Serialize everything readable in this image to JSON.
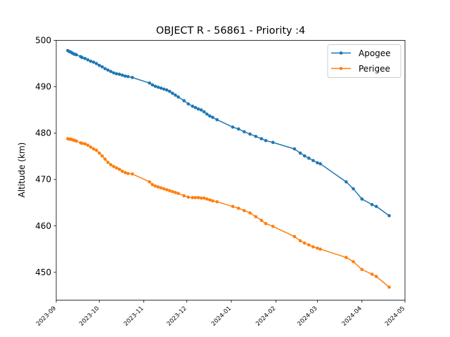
{
  "chart_data": {
    "type": "line",
    "title": "OBJECT R - 56861 - Priority :4",
    "xlabel": "",
    "ylabel": "Altitude (km)",
    "x_type": "date",
    "xlim": [
      "2023-09-01",
      "2024-05-01"
    ],
    "ylim": [
      444,
      500
    ],
    "x_ticks": [
      "2023-09",
      "2023-10",
      "2023-11",
      "2023-12",
      "2024-01",
      "2024-02",
      "2024-03",
      "2024-04",
      "2024-05"
    ],
    "y_ticks": [
      450,
      460,
      470,
      480,
      490,
      500
    ],
    "grid": false,
    "legend_position": "upper right",
    "series": [
      {
        "name": "Apogee",
        "color": "#1f77b4",
        "marker": "circle",
        "points": [
          [
            "2023-09-09",
            497.8
          ],
          [
            "2023-09-10",
            497.6
          ],
          [
            "2023-09-11",
            497.5
          ],
          [
            "2023-09-12",
            497.3
          ],
          [
            "2023-09-13",
            497.1
          ],
          [
            "2023-09-14",
            497.0
          ],
          [
            "2023-09-15",
            496.9
          ],
          [
            "2023-09-18",
            496.5
          ],
          [
            "2023-09-19",
            496.3
          ],
          [
            "2023-09-21",
            496.1
          ],
          [
            "2023-09-23",
            495.8
          ],
          [
            "2023-09-25",
            495.5
          ],
          [
            "2023-09-27",
            495.3
          ],
          [
            "2023-09-29",
            495.0
          ],
          [
            "2023-10-01",
            494.6
          ],
          [
            "2023-10-03",
            494.3
          ],
          [
            "2023-10-05",
            493.9
          ],
          [
            "2023-10-07",
            493.6
          ],
          [
            "2023-10-09",
            493.3
          ],
          [
            "2023-10-11",
            493.0
          ],
          [
            "2023-10-13",
            492.8
          ],
          [
            "2023-10-15",
            492.7
          ],
          [
            "2023-10-17",
            492.5
          ],
          [
            "2023-10-19",
            492.3
          ],
          [
            "2023-10-21",
            492.2
          ],
          [
            "2023-10-24",
            492.0
          ],
          [
            "2023-11-05",
            490.8
          ],
          [
            "2023-11-07",
            490.4
          ],
          [
            "2023-11-09",
            490.1
          ],
          [
            "2023-11-11",
            489.9
          ],
          [
            "2023-11-13",
            489.7
          ],
          [
            "2023-11-15",
            489.5
          ],
          [
            "2023-11-17",
            489.3
          ],
          [
            "2023-11-19",
            489.0
          ],
          [
            "2023-11-21",
            488.6
          ],
          [
            "2023-11-23",
            488.2
          ],
          [
            "2023-11-25",
            487.8
          ],
          [
            "2023-11-29",
            487.0
          ],
          [
            "2023-12-02",
            486.3
          ],
          [
            "2023-12-05",
            485.8
          ],
          [
            "2023-12-07",
            485.5
          ],
          [
            "2023-12-09",
            485.2
          ],
          [
            "2023-12-11",
            485.0
          ],
          [
            "2023-12-13",
            484.6
          ],
          [
            "2023-12-15",
            484.1
          ],
          [
            "2023-12-17",
            483.7
          ],
          [
            "2023-12-19",
            483.4
          ],
          [
            "2023-12-22",
            482.9
          ],
          [
            "2024-01-02",
            481.3
          ],
          [
            "2024-01-06",
            480.9
          ],
          [
            "2024-01-10",
            480.3
          ],
          [
            "2024-01-14",
            479.8
          ],
          [
            "2024-01-18",
            479.3
          ],
          [
            "2024-01-22",
            478.8
          ],
          [
            "2024-01-25",
            478.4
          ],
          [
            "2024-01-30",
            478.0
          ],
          [
            "2024-02-14",
            476.6
          ],
          [
            "2024-02-18",
            475.7
          ],
          [
            "2024-02-21",
            475.1
          ],
          [
            "2024-02-24",
            474.6
          ],
          [
            "2024-02-27",
            474.1
          ],
          [
            "2024-03-01",
            473.6
          ],
          [
            "2024-03-03",
            473.4
          ],
          [
            "2024-03-21",
            469.5
          ],
          [
            "2024-03-26",
            468.0
          ],
          [
            "2024-04-01",
            465.8
          ],
          [
            "2024-04-08",
            464.6
          ],
          [
            "2024-04-11",
            464.2
          ],
          [
            "2024-04-20",
            462.2
          ]
        ]
      },
      {
        "name": "Perigee",
        "color": "#ff7f0e",
        "marker": "circle",
        "points": [
          [
            "2023-09-09",
            478.8
          ],
          [
            "2023-09-10",
            478.7
          ],
          [
            "2023-09-11",
            478.7
          ],
          [
            "2023-09-12",
            478.6
          ],
          [
            "2023-09-13",
            478.5
          ],
          [
            "2023-09-14",
            478.4
          ],
          [
            "2023-09-15",
            478.3
          ],
          [
            "2023-09-18",
            477.9
          ],
          [
            "2023-09-19",
            477.8
          ],
          [
            "2023-09-21",
            477.7
          ],
          [
            "2023-09-23",
            477.4
          ],
          [
            "2023-09-25",
            477.0
          ],
          [
            "2023-09-27",
            476.6
          ],
          [
            "2023-09-29",
            476.3
          ],
          [
            "2023-10-01",
            475.7
          ],
          [
            "2023-10-03",
            475.1
          ],
          [
            "2023-10-05",
            474.4
          ],
          [
            "2023-10-07",
            473.7
          ],
          [
            "2023-10-09",
            473.2
          ],
          [
            "2023-10-11",
            472.8
          ],
          [
            "2023-10-13",
            472.5
          ],
          [
            "2023-10-15",
            472.2
          ],
          [
            "2023-10-17",
            471.8
          ],
          [
            "2023-10-19",
            471.5
          ],
          [
            "2023-10-21",
            471.3
          ],
          [
            "2023-10-24",
            471.2
          ],
          [
            "2023-11-05",
            469.5
          ],
          [
            "2023-11-07",
            468.9
          ],
          [
            "2023-11-09",
            468.6
          ],
          [
            "2023-11-11",
            468.4
          ],
          [
            "2023-11-13",
            468.2
          ],
          [
            "2023-11-15",
            468.0
          ],
          [
            "2023-11-17",
            467.8
          ],
          [
            "2023-11-19",
            467.6
          ],
          [
            "2023-11-21",
            467.4
          ],
          [
            "2023-11-23",
            467.2
          ],
          [
            "2023-11-25",
            467.0
          ],
          [
            "2023-11-29",
            466.5
          ],
          [
            "2023-12-02",
            466.2
          ],
          [
            "2023-12-05",
            466.1
          ],
          [
            "2023-12-07",
            466.1
          ],
          [
            "2023-12-09",
            466.1
          ],
          [
            "2023-12-11",
            466.0
          ],
          [
            "2023-12-13",
            466.0
          ],
          [
            "2023-12-15",
            465.8
          ],
          [
            "2023-12-17",
            465.6
          ],
          [
            "2023-12-19",
            465.4
          ],
          [
            "2023-12-22",
            465.2
          ],
          [
            "2024-01-02",
            464.2
          ],
          [
            "2024-01-06",
            463.8
          ],
          [
            "2024-01-10",
            463.3
          ],
          [
            "2024-01-14",
            462.8
          ],
          [
            "2024-01-18",
            462.0
          ],
          [
            "2024-01-22",
            461.2
          ],
          [
            "2024-01-25",
            460.5
          ],
          [
            "2024-01-30",
            459.9
          ],
          [
            "2024-02-14",
            457.7
          ],
          [
            "2024-02-18",
            456.8
          ],
          [
            "2024-02-21",
            456.3
          ],
          [
            "2024-02-24",
            455.9
          ],
          [
            "2024-02-27",
            455.5
          ],
          [
            "2024-03-01",
            455.2
          ],
          [
            "2024-03-03",
            455.0
          ],
          [
            "2024-03-21",
            453.2
          ],
          [
            "2024-03-26",
            452.3
          ],
          [
            "2024-04-01",
            450.6
          ],
          [
            "2024-04-08",
            449.6
          ],
          [
            "2024-04-11",
            449.1
          ],
          [
            "2024-04-20",
            446.8
          ]
        ]
      }
    ]
  }
}
